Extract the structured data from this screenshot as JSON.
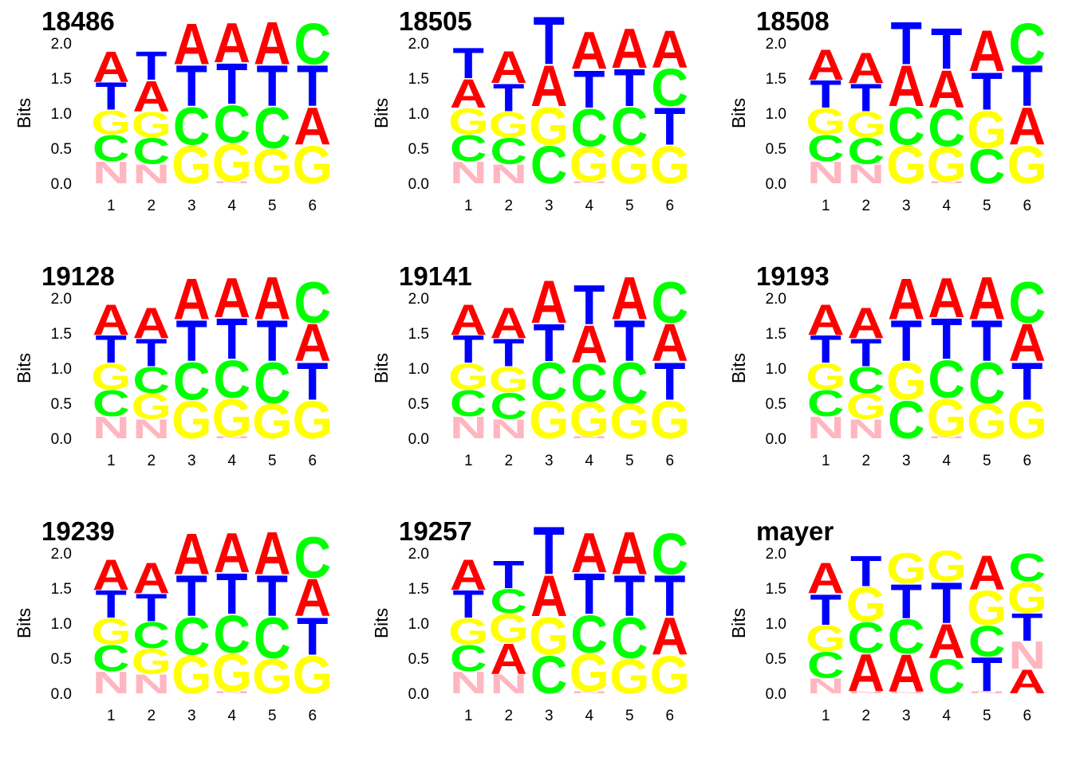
{
  "colors": {
    "A": "#ff0000",
    "T": "#0000ff",
    "C": "#00ff00",
    "G": "#ffff00",
    "N": "#ffb6c1"
  },
  "chart_data": [
    {
      "type": "sequence-logo",
      "title": "18486",
      "ylabel": "Bits",
      "ylim": [
        0,
        2
      ],
      "yticks": [
        "0.0",
        "0.5",
        "1.0",
        "1.5",
        "2.0"
      ],
      "positions": [
        "1",
        "2",
        "3",
        "4",
        "5",
        "6"
      ],
      "stacks": [
        [
          [
            "N",
            0.32
          ],
          [
            "C",
            0.38
          ],
          [
            "G",
            0.35
          ],
          [
            "T",
            0.4
          ],
          [
            "A",
            0.45
          ]
        ],
        [
          [
            "N",
            0.28
          ],
          [
            "C",
            0.38
          ],
          [
            "G",
            0.37
          ],
          [
            "A",
            0.45
          ],
          [
            "T",
            0.42
          ]
        ],
        [
          [
            "G",
            0.55
          ],
          [
            "C",
            0.55
          ],
          [
            "T",
            0.6
          ],
          [
            "A",
            0.6
          ]
        ],
        [
          [
            "N",
            0.03
          ],
          [
            "G",
            0.55
          ],
          [
            "C",
            0.55
          ],
          [
            "T",
            0.6
          ],
          [
            "A",
            0.58
          ]
        ],
        [
          [
            "G",
            0.5
          ],
          [
            "C",
            0.6
          ],
          [
            "T",
            0.6
          ],
          [
            "A",
            0.62
          ]
        ],
        [
          [
            "G",
            0.55
          ],
          [
            "A",
            0.55
          ],
          [
            "T",
            0.6
          ],
          [
            "C",
            0.6
          ]
        ]
      ]
    },
    {
      "type": "sequence-logo",
      "title": "18505",
      "ylabel": "Bits",
      "ylim": [
        0,
        2
      ],
      "yticks": [
        "0.0",
        "0.5",
        "1.0",
        "1.5",
        "2.0"
      ],
      "positions": [
        "1",
        "2",
        "3",
        "4",
        "5",
        "6"
      ],
      "stacks": [
        [
          [
            "N",
            0.32
          ],
          [
            "C",
            0.38
          ],
          [
            "G",
            0.38
          ],
          [
            "A",
            0.42
          ],
          [
            "T",
            0.45
          ]
        ],
        [
          [
            "N",
            0.28
          ],
          [
            "C",
            0.38
          ],
          [
            "G",
            0.37
          ],
          [
            "T",
            0.4
          ],
          [
            "A",
            0.47
          ]
        ],
        [
          [
            "C",
            0.55
          ],
          [
            "G",
            0.55
          ],
          [
            "A",
            0.6
          ],
          [
            "T",
            0.7
          ]
        ],
        [
          [
            "N",
            0.03
          ],
          [
            "G",
            0.5
          ],
          [
            "C",
            0.55
          ],
          [
            "T",
            0.55
          ],
          [
            "A",
            0.55
          ]
        ],
        [
          [
            "G",
            0.55
          ],
          [
            "C",
            0.55
          ],
          [
            "T",
            0.55
          ],
          [
            "A",
            0.58
          ]
        ],
        [
          [
            "G",
            0.55
          ],
          [
            "T",
            0.55
          ],
          [
            "C",
            0.55
          ],
          [
            "A",
            0.55
          ]
        ]
      ]
    },
    {
      "type": "sequence-logo",
      "title": "18508",
      "ylabel": "Bits",
      "ylim": [
        0,
        2
      ],
      "yticks": [
        "0.0",
        "0.5",
        "1.0",
        "1.5",
        "2.0"
      ],
      "positions": [
        "1",
        "2",
        "3",
        "4",
        "5",
        "6"
      ],
      "stacks": [
        [
          [
            "N",
            0.32
          ],
          [
            "C",
            0.38
          ],
          [
            "G",
            0.38
          ],
          [
            "T",
            0.4
          ],
          [
            "A",
            0.45
          ]
        ],
        [
          [
            "N",
            0.28
          ],
          [
            "C",
            0.38
          ],
          [
            "G",
            0.37
          ],
          [
            "T",
            0.4
          ],
          [
            "A",
            0.45
          ]
        ],
        [
          [
            "G",
            0.55
          ],
          [
            "C",
            0.55
          ],
          [
            "A",
            0.6
          ],
          [
            "T",
            0.62
          ]
        ],
        [
          [
            "N",
            0.03
          ],
          [
            "G",
            0.5
          ],
          [
            "C",
            0.55
          ],
          [
            "A",
            0.55
          ],
          [
            "T",
            0.6
          ]
        ],
        [
          [
            "C",
            0.5
          ],
          [
            "G",
            0.55
          ],
          [
            "T",
            0.55
          ],
          [
            "A",
            0.6
          ]
        ],
        [
          [
            "G",
            0.55
          ],
          [
            "A",
            0.55
          ],
          [
            "T",
            0.6
          ],
          [
            "C",
            0.6
          ]
        ]
      ]
    },
    {
      "type": "sequence-logo",
      "title": "19128",
      "ylabel": "Bits",
      "ylim": [
        0,
        2
      ],
      "yticks": [
        "0.0",
        "0.5",
        "1.0",
        "1.5",
        "2.0"
      ],
      "positions": [
        "1",
        "2",
        "3",
        "4",
        "5",
        "6"
      ],
      "stacks": [
        [
          [
            "N",
            0.32
          ],
          [
            "C",
            0.38
          ],
          [
            "G",
            0.38
          ],
          [
            "T",
            0.4
          ],
          [
            "A",
            0.45
          ]
        ],
        [
          [
            "N",
            0.28
          ],
          [
            "G",
            0.37
          ],
          [
            "C",
            0.38
          ],
          [
            "T",
            0.4
          ],
          [
            "A",
            0.45
          ]
        ],
        [
          [
            "G",
            0.55
          ],
          [
            "C",
            0.55
          ],
          [
            "T",
            0.6
          ],
          [
            "A",
            0.6
          ]
        ],
        [
          [
            "N",
            0.03
          ],
          [
            "G",
            0.55
          ],
          [
            "C",
            0.55
          ],
          [
            "T",
            0.6
          ],
          [
            "A",
            0.58
          ]
        ],
        [
          [
            "G",
            0.5
          ],
          [
            "C",
            0.6
          ],
          [
            "T",
            0.6
          ],
          [
            "A",
            0.62
          ]
        ],
        [
          [
            "G",
            0.55
          ],
          [
            "T",
            0.55
          ],
          [
            "A",
            0.55
          ],
          [
            "C",
            0.6
          ]
        ]
      ]
    },
    {
      "type": "sequence-logo",
      "title": "19141",
      "ylabel": "Bits",
      "ylim": [
        0,
        2
      ],
      "yticks": [
        "0.0",
        "0.5",
        "1.0",
        "1.5",
        "2.0"
      ],
      "positions": [
        "1",
        "2",
        "3",
        "4",
        "5",
        "6"
      ],
      "stacks": [
        [
          [
            "N",
            0.32
          ],
          [
            "C",
            0.38
          ],
          [
            "G",
            0.38
          ],
          [
            "T",
            0.4
          ],
          [
            "A",
            0.45
          ]
        ],
        [
          [
            "N",
            0.28
          ],
          [
            "C",
            0.38
          ],
          [
            "G",
            0.37
          ],
          [
            "T",
            0.4
          ],
          [
            "A",
            0.45
          ]
        ],
        [
          [
            "G",
            0.55
          ],
          [
            "C",
            0.55
          ],
          [
            "T",
            0.55
          ],
          [
            "A",
            0.62
          ]
        ],
        [
          [
            "N",
            0.03
          ],
          [
            "G",
            0.5
          ],
          [
            "C",
            0.55
          ],
          [
            "A",
            0.55
          ],
          [
            "T",
            0.58
          ]
        ],
        [
          [
            "G",
            0.5
          ],
          [
            "C",
            0.6
          ],
          [
            "T",
            0.6
          ],
          [
            "A",
            0.62
          ]
        ],
        [
          [
            "G",
            0.55
          ],
          [
            "T",
            0.55
          ],
          [
            "A",
            0.55
          ],
          [
            "C",
            0.6
          ]
        ]
      ]
    },
    {
      "type": "sequence-logo",
      "title": "19193",
      "ylabel": "Bits",
      "ylim": [
        0,
        2
      ],
      "yticks": [
        "0.0",
        "0.5",
        "1.0",
        "1.5",
        "2.0"
      ],
      "positions": [
        "1",
        "2",
        "3",
        "4",
        "5",
        "6"
      ],
      "stacks": [
        [
          [
            "N",
            0.32
          ],
          [
            "C",
            0.38
          ],
          [
            "G",
            0.38
          ],
          [
            "T",
            0.4
          ],
          [
            "A",
            0.45
          ]
        ],
        [
          [
            "N",
            0.28
          ],
          [
            "G",
            0.37
          ],
          [
            "C",
            0.38
          ],
          [
            "T",
            0.4
          ],
          [
            "A",
            0.45
          ]
        ],
        [
          [
            "C",
            0.55
          ],
          [
            "G",
            0.55
          ],
          [
            "T",
            0.6
          ],
          [
            "A",
            0.6
          ]
        ],
        [
          [
            "N",
            0.03
          ],
          [
            "G",
            0.55
          ],
          [
            "C",
            0.55
          ],
          [
            "T",
            0.6
          ],
          [
            "A",
            0.58
          ]
        ],
        [
          [
            "G",
            0.5
          ],
          [
            "C",
            0.6
          ],
          [
            "T",
            0.6
          ],
          [
            "A",
            0.62
          ]
        ],
        [
          [
            "G",
            0.55
          ],
          [
            "T",
            0.55
          ],
          [
            "A",
            0.55
          ],
          [
            "C",
            0.6
          ]
        ]
      ]
    },
    {
      "type": "sequence-logo",
      "title": "19239",
      "ylabel": "Bits",
      "ylim": [
        0,
        2
      ],
      "yticks": [
        "0.0",
        "0.5",
        "1.0",
        "1.5",
        "2.0"
      ],
      "positions": [
        "1",
        "2",
        "3",
        "4",
        "5",
        "6"
      ],
      "stacks": [
        [
          [
            "N",
            0.32
          ],
          [
            "C",
            0.38
          ],
          [
            "G",
            0.38
          ],
          [
            "T",
            0.4
          ],
          [
            "A",
            0.45
          ]
        ],
        [
          [
            "N",
            0.28
          ],
          [
            "G",
            0.37
          ],
          [
            "C",
            0.38
          ],
          [
            "T",
            0.4
          ],
          [
            "A",
            0.45
          ]
        ],
        [
          [
            "G",
            0.55
          ],
          [
            "C",
            0.55
          ],
          [
            "T",
            0.6
          ],
          [
            "A",
            0.6
          ]
        ],
        [
          [
            "N",
            0.03
          ],
          [
            "G",
            0.55
          ],
          [
            "C",
            0.55
          ],
          [
            "T",
            0.6
          ],
          [
            "A",
            0.58
          ]
        ],
        [
          [
            "G",
            0.5
          ],
          [
            "C",
            0.6
          ],
          [
            "T",
            0.6
          ],
          [
            "A",
            0.62
          ]
        ],
        [
          [
            "G",
            0.55
          ],
          [
            "T",
            0.55
          ],
          [
            "A",
            0.55
          ],
          [
            "C",
            0.6
          ]
        ]
      ]
    },
    {
      "type": "sequence-logo",
      "title": "19257",
      "ylabel": "Bits",
      "ylim": [
        0,
        2
      ],
      "yticks": [
        "0.0",
        "0.5",
        "1.0",
        "1.5",
        "2.0"
      ],
      "positions": [
        "1",
        "2",
        "3",
        "4",
        "5",
        "6"
      ],
      "stacks": [
        [
          [
            "N",
            0.32
          ],
          [
            "C",
            0.38
          ],
          [
            "G",
            0.38
          ],
          [
            "T",
            0.4
          ],
          [
            "A",
            0.45
          ]
        ],
        [
          [
            "N",
            0.28
          ],
          [
            "A",
            0.45
          ],
          [
            "G",
            0.42
          ],
          [
            "C",
            0.35
          ],
          [
            "T",
            0.4
          ]
        ],
        [
          [
            "C",
            0.55
          ],
          [
            "G",
            0.55
          ],
          [
            "A",
            0.6
          ],
          [
            "T",
            0.7
          ]
        ],
        [
          [
            "N",
            0.03
          ],
          [
            "G",
            0.55
          ],
          [
            "C",
            0.55
          ],
          [
            "T",
            0.6
          ],
          [
            "A",
            0.58
          ]
        ],
        [
          [
            "G",
            0.5
          ],
          [
            "C",
            0.6
          ],
          [
            "T",
            0.6
          ],
          [
            "A",
            0.62
          ]
        ],
        [
          [
            "G",
            0.55
          ],
          [
            "A",
            0.55
          ],
          [
            "T",
            0.6
          ],
          [
            "C",
            0.6
          ]
        ]
      ]
    },
    {
      "type": "sequence-logo",
      "title": "mayer",
      "ylabel": "Bits",
      "ylim": [
        0,
        2
      ],
      "yticks": [
        "0.0",
        "0.5",
        "1.0",
        "1.5",
        "2.0"
      ],
      "positions": [
        "1",
        "2",
        "3",
        "4",
        "5",
        "6"
      ],
      "stacks": [
        [
          [
            "N",
            0.22
          ],
          [
            "C",
            0.38
          ],
          [
            "G",
            0.38
          ],
          [
            "T",
            0.45
          ],
          [
            "A",
            0.45
          ]
        ],
        [
          [
            "N",
            0.03
          ],
          [
            "A",
            0.55
          ],
          [
            "C",
            0.45
          ],
          [
            "G",
            0.5
          ],
          [
            "T",
            0.45
          ]
        ],
        [
          [
            "N",
            0.02
          ],
          [
            "A",
            0.55
          ],
          [
            "C",
            0.5
          ],
          [
            "T",
            0.5
          ],
          [
            "G",
            0.45
          ]
        ],
        [
          [
            "C",
            0.5
          ],
          [
            "A",
            0.5
          ],
          [
            "T",
            0.6
          ],
          [
            "G",
            0.45
          ]
        ],
        [
          [
            "N",
            0.03
          ],
          [
            "T",
            0.5
          ],
          [
            "C",
            0.45
          ],
          [
            "G",
            0.5
          ],
          [
            "A",
            0.5
          ]
        ],
        [
          [
            "A",
            0.35
          ],
          [
            "N",
            0.4
          ],
          [
            "T",
            0.4
          ],
          [
            "G",
            0.45
          ],
          [
            "C",
            0.4
          ]
        ]
      ]
    }
  ]
}
